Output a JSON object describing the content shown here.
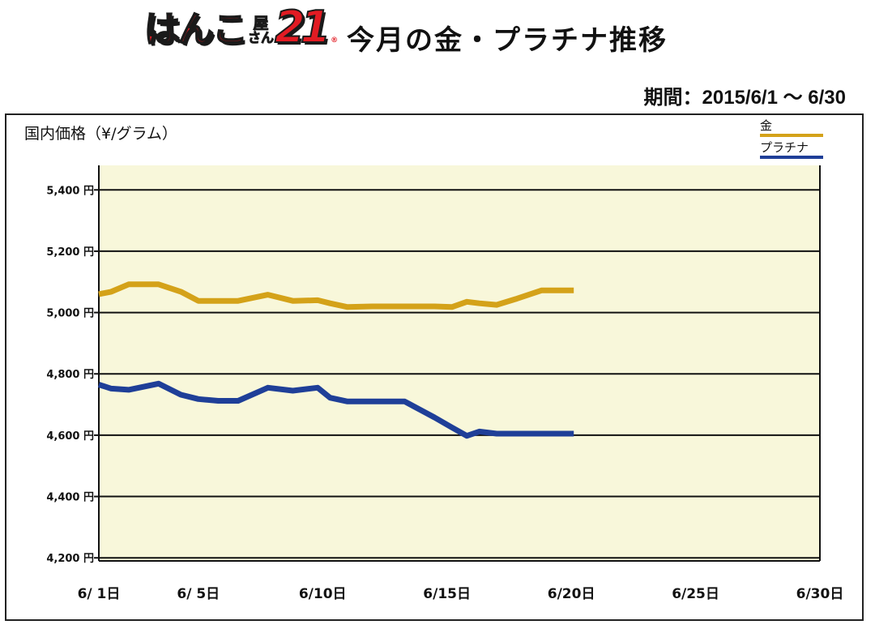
{
  "logo": {
    "kana": "はんこ",
    "ya": "屋",
    "san": "さん",
    "num": "21",
    "reg": "®"
  },
  "header": {
    "title": "今月の金・プラチナ推移",
    "period": "期間：2015/6/1 〜 6/30"
  },
  "colors": {
    "plot_background": "#f8f7da",
    "gold": "#d4a219",
    "platinum": "#1f3f98",
    "grid": "#111111"
  },
  "chart_data": {
    "type": "line",
    "title": "今月の金・プラチナ推移",
    "ylabel": "国内価格（¥/グラム）",
    "xlabel": "",
    "x_tick_labels": [
      "6/ 1日",
      "6/ 5日",
      "6/10日",
      "6/15日",
      "6/20日",
      "6/25日",
      "6/30日"
    ],
    "x_tick_days": [
      1,
      5,
      10,
      15,
      20,
      25,
      30
    ],
    "xlim": [
      1,
      30
    ],
    "y_ticks": [
      4200,
      4400,
      4600,
      4800,
      5000,
      5200,
      5400
    ],
    "y_tick_labels": [
      "4,200 円",
      "4,400 円",
      "4,600 円",
      "4,800 円",
      "5,000 円",
      "5,200 円",
      "5,400 円"
    ],
    "ylim": [
      4190,
      5480
    ],
    "grid": true,
    "legend_position": "top-right",
    "series": [
      {
        "name": "金",
        "color": "#d4a219",
        "x": [
          1,
          1.5,
          2.2,
          3.4,
          4.3,
          5.0,
          5.8,
          6.6,
          7.8,
          8.8,
          9.8,
          10.3,
          11.0,
          12.0,
          13.3,
          14.5,
          15.2,
          15.8,
          16.3,
          17.0,
          17.8,
          18.8,
          20.1
        ],
        "y": [
          5060,
          5068,
          5092,
          5092,
          5068,
          5038,
          5038,
          5038,
          5058,
          5038,
          5040,
          5030,
          5018,
          5020,
          5020,
          5020,
          5018,
          5035,
          5030,
          5025,
          5045,
          5072,
          5072
        ]
      },
      {
        "name": "プラチナ",
        "color": "#1f3f98",
        "x": [
          1,
          1.5,
          2.2,
          3.4,
          4.3,
          5.0,
          5.8,
          6.6,
          7.8,
          8.8,
          9.8,
          10.3,
          11.0,
          12.0,
          13.3,
          14.5,
          15.2,
          15.8,
          16.3,
          17.0,
          17.8,
          18.8,
          20.1
        ],
        "y": [
          4765,
          4752,
          4748,
          4768,
          4732,
          4718,
          4712,
          4712,
          4755,
          4745,
          4755,
          4722,
          4710,
          4710,
          4710,
          4658,
          4625,
          4598,
          4612,
          4605,
          4605,
          4605,
          4605
        ]
      }
    ]
  }
}
